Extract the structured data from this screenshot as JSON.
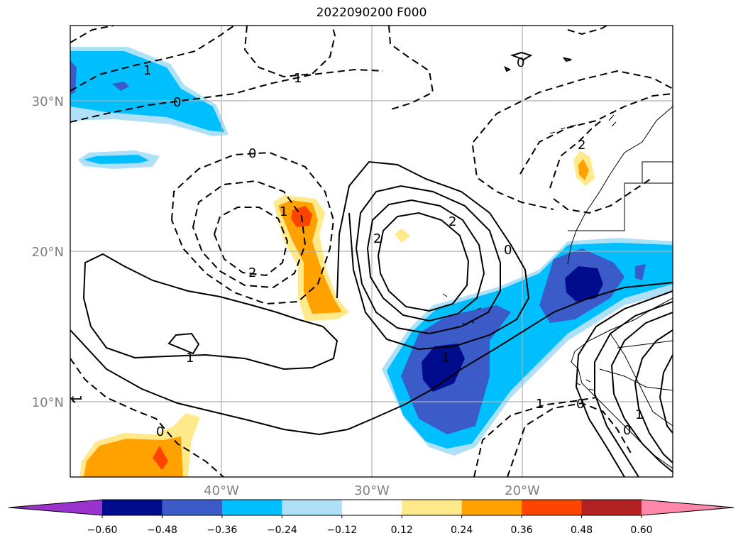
{
  "title": "2022090200 F000",
  "map": {
    "lat_labels": [
      "30°N",
      "20°N",
      "10°N"
    ],
    "lon_labels": [
      "40°W",
      "30°W",
      "20°W"
    ],
    "contour_labels": [
      "1",
      "0",
      "1",
      "0",
      "1",
      "2",
      "0",
      "2",
      "0",
      "2",
      "1",
      "1",
      "0",
      "1",
      "0",
      "2",
      "1",
      "0",
      "1"
    ],
    "gridlines": true
  },
  "colorbar": {
    "tick_labels": [
      "−0.60",
      "−0.48",
      "−0.36",
      "−0.24",
      "−0.12",
      "0.12",
      "0.24",
      "0.36",
      "0.48",
      "0.60"
    ],
    "colors": [
      "#9933cc",
      "#000c8c",
      "#3a5bc8",
      "#00bfff",
      "#aee0f7",
      "#ffffff",
      "#ffe98a",
      "#ffa200",
      "#ff4400",
      "#b22222",
      "#ff88aa"
    ],
    "extend": "both"
  }
}
